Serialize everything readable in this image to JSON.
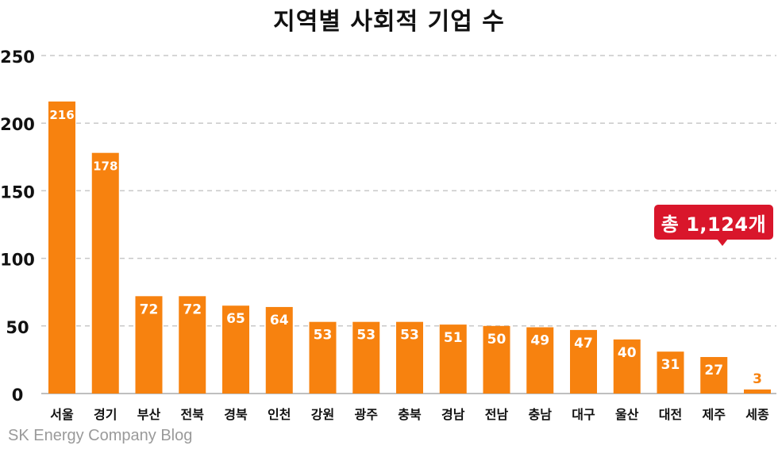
{
  "chart_data": {
    "type": "bar",
    "title": "지역별 사회적 기업 수",
    "xlabel": "",
    "ylabel": "",
    "categories": [
      "서울",
      "경기",
      "부산",
      "전북",
      "경북",
      "인천",
      "강원",
      "광주",
      "충북",
      "경남",
      "전남",
      "충남",
      "대구",
      "울산",
      "대전",
      "제주",
      "세종"
    ],
    "values": [
      216,
      178,
      72,
      72,
      65,
      64,
      53,
      53,
      53,
      51,
      50,
      49,
      47,
      40,
      31,
      27,
      3
    ],
    "ylim": [
      0,
      250
    ],
    "yticks": [
      0,
      50,
      100,
      150,
      200,
      250
    ],
    "grid": true,
    "bar_color": "#f7820f",
    "annotation": "총 1,124개"
  },
  "source": "SK Energy Company Blog",
  "colors": {
    "bar": "#f7820f",
    "callout": "#d9162b",
    "grid": "#c8c8c8"
  }
}
